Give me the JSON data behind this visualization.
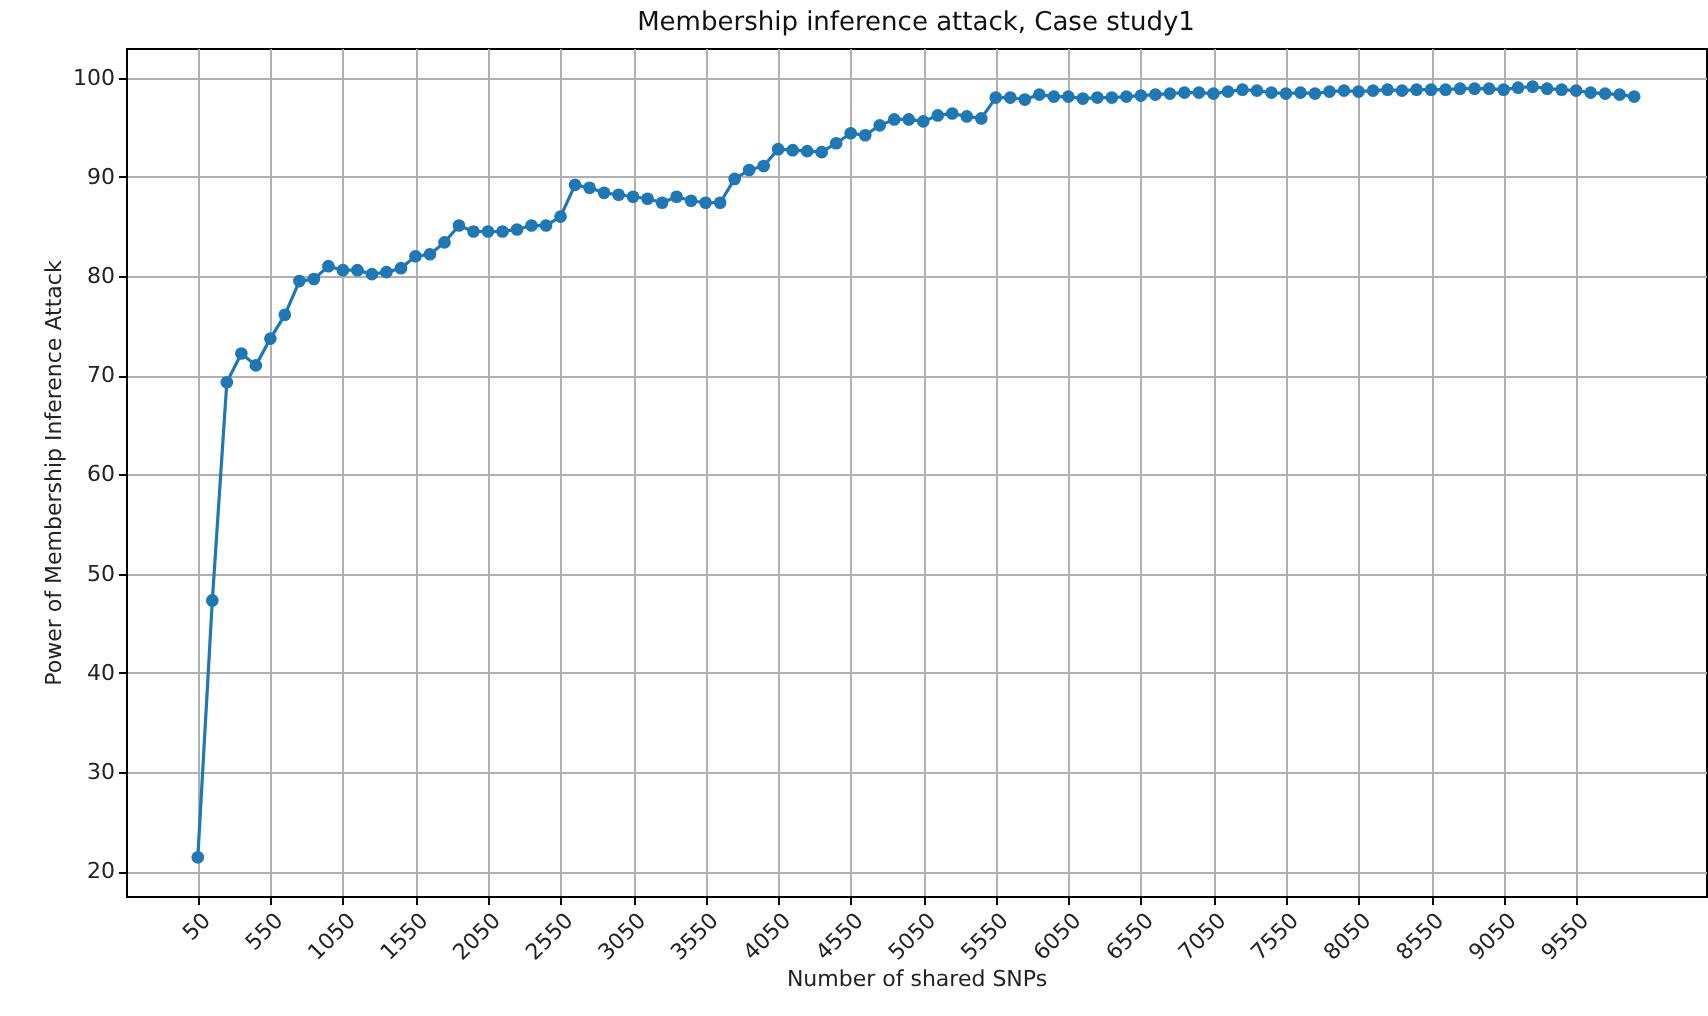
{
  "chart_data": {
    "type": "line",
    "title": "Membership inference attack, Case study1",
    "xlabel": "Number of shared SNPs",
    "ylabel": "Power of Membership Inference Attack",
    "x": [
      50,
      150,
      250,
      350,
      450,
      550,
      650,
      750,
      850,
      950,
      1050,
      1150,
      1250,
      1350,
      1450,
      1550,
      1650,
      1750,
      1850,
      1950,
      2050,
      2150,
      2250,
      2350,
      2450,
      2550,
      2650,
      2750,
      2850,
      2950,
      3050,
      3150,
      3250,
      3350,
      3450,
      3550,
      3650,
      3750,
      3850,
      3950,
      4050,
      4150,
      4250,
      4350,
      4450,
      4550,
      4650,
      4750,
      4850,
      4950,
      5050,
      5150,
      5250,
      5350,
      5450,
      5550,
      5650,
      5750,
      5850,
      5950,
      6050,
      6150,
      6250,
      6350,
      6450,
      6550,
      6650,
      6750,
      6850,
      6950,
      7050,
      7150,
      7250,
      7350,
      7450,
      7550,
      7650,
      7750,
      7850,
      7950,
      8050,
      8150,
      8250,
      8350,
      8450,
      8550,
      8650,
      8750,
      8850,
      8950,
      9050,
      9150,
      9250,
      9350,
      9450,
      9550,
      9650,
      9750,
      9850,
      9950
    ],
    "series": [
      {
        "color": "#1f77b4",
        "values": [
          21.4,
          47.3,
          69.3,
          72.2,
          71.0,
          73.7,
          76.1,
          79.5,
          79.7,
          81.0,
          80.6,
          80.6,
          80.2,
          80.4,
          80.8,
          82.0,
          82.2,
          83.4,
          85.1,
          84.5,
          84.5,
          84.5,
          84.7,
          85.1,
          85.1,
          86.0,
          89.2,
          88.9,
          88.4,
          88.2,
          88.0,
          87.8,
          87.4,
          88.0,
          87.6,
          87.4,
          87.4,
          89.8,
          90.7,
          91.1,
          92.8,
          92.7,
          92.6,
          92.5,
          93.4,
          94.4,
          94.2,
          95.2,
          95.8,
          95.8,
          95.6,
          96.2,
          96.4,
          96.1,
          95.9,
          98.0,
          98.0,
          97.8,
          98.3,
          98.1,
          98.1,
          97.9,
          98.0,
          98.0,
          98.1,
          98.2,
          98.3,
          98.4,
          98.5,
          98.5,
          98.4,
          98.6,
          98.8,
          98.7,
          98.5,
          98.4,
          98.5,
          98.4,
          98.6,
          98.7,
          98.6,
          98.7,
          98.8,
          98.7,
          98.8,
          98.8,
          98.8,
          98.9,
          98.9,
          98.9,
          98.8,
          99.0,
          99.1,
          98.9,
          98.8,
          98.7,
          98.5,
          98.4,
          98.3,
          98.1
        ]
      }
    ],
    "xlim": [
      -445,
      10445
    ],
    "xticks": [
      50,
      550,
      1050,
      1550,
      2050,
      2550,
      3050,
      3550,
      4050,
      4550,
      5050,
      5550,
      6050,
      6550,
      7050,
      7550,
      8050,
      8550,
      9050,
      9550
    ],
    "ylim": [
      17.5,
      103.0
    ],
    "yticks": [
      20,
      30,
      40,
      50,
      60,
      70,
      80,
      90,
      100
    ],
    "grid": true,
    "marker": "circle",
    "line_style": "solid"
  }
}
